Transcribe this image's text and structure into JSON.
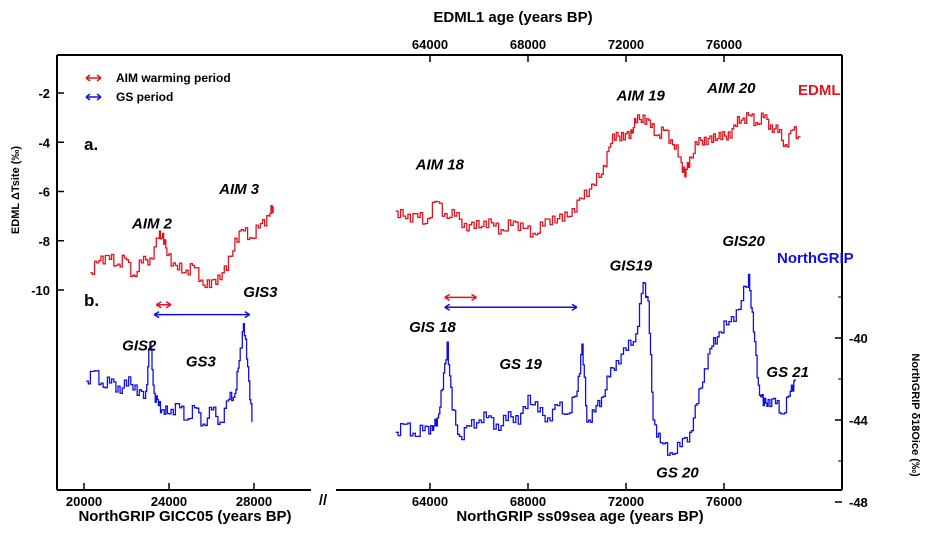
{
  "chart_data": {
    "type": "line",
    "top_axis": {
      "label": "EDML1 age (years BP)",
      "ticks": [
        64000,
        68000,
        72000,
        76000
      ]
    },
    "bottom_axis": {
      "left_label": "NorthGRIP GICC05 (years BP)",
      "right_label": "NorthGRIP ss09sea age (years BP)",
      "left_ticks": [
        20000,
        24000,
        28000
      ],
      "right_ticks": [
        64000,
        68000,
        72000,
        76000
      ],
      "break_symbol": "//"
    },
    "left_axis": {
      "label": "EDML ΔTsite (‰)",
      "ticks": [
        -2,
        -4,
        -6,
        -8,
        -10
      ],
      "range": [
        -11.3,
        -0.8
      ]
    },
    "right_axis": {
      "label": "NorthGRIP δ18Oice (‰)",
      "ticks": [
        -40,
        -44,
        -48
      ],
      "range": [
        -48,
        -34.7
      ]
    },
    "legend": {
      "placement": "top-left",
      "items": [
        {
          "label": "AIM warming period",
          "color": "#e0141e"
        },
        {
          "label": "GS period",
          "color": "#1010e0"
        }
      ]
    },
    "panel_labels": [
      "a.",
      "b."
    ],
    "series": [
      {
        "name": "EDML",
        "color": "#e0141e",
        "segments": [
          {
            "x": [
              20300,
              20700,
              21100,
              21500,
              21900,
              22300,
              22700,
              23100,
              23500,
              23700,
              23900,
              24300,
              24700,
              25100,
              25500,
              25900,
              26300,
              26700,
              27100,
              27500,
              27900,
              28300,
              28700,
              28900
            ],
            "y": [
              -9.3,
              -8.8,
              -8.6,
              -9.0,
              -8.7,
              -9.4,
              -8.9,
              -8.7,
              -7.9,
              -7.7,
              -8.6,
              -9.0,
              -9.3,
              -9.0,
              -9.6,
              -9.9,
              -9.4,
              -9.2,
              -7.9,
              -7.6,
              -7.9,
              -7.3,
              -7.0,
              -6.6
            ]
          },
          {
            "x": [
              62600,
              63000,
              63400,
              63800,
              64200,
              64600,
              65000,
              65400,
              65800,
              66200,
              66600,
              67000,
              67400,
              67800,
              68200,
              68600,
              69000,
              69400,
              69800,
              70200,
              70600,
              71000,
              71300,
              71600,
              71900,
              72200,
              72400,
              72700,
              73000,
              73300,
              73600,
              73900,
              74200,
              74400,
              74600,
              74900,
              75200,
              75500,
              75800,
              76100,
              76400,
              76700,
              77000,
              77300,
              77600,
              77900,
              78200,
              78500,
              78800,
              79100
            ],
            "y": [
              -6.8,
              -7.1,
              -6.9,
              -7.3,
              -6.4,
              -6.9,
              -7.0,
              -7.3,
              -7.5,
              -7.2,
              -7.4,
              -7.6,
              -7.2,
              -7.5,
              -7.7,
              -7.4,
              -7.0,
              -7.2,
              -6.7,
              -6.3,
              -5.7,
              -5.3,
              -4.2,
              -3.6,
              -3.9,
              -3.5,
              -3.2,
              -2.9,
              -3.4,
              -3.7,
              -3.5,
              -4.1,
              -4.6,
              -5.4,
              -4.6,
              -4.1,
              -3.8,
              -4.0,
              -3.6,
              -3.9,
              -3.3,
              -3.1,
              -2.9,
              -3.2,
              -3.0,
              -3.3,
              -3.6,
              -4.1,
              -3.5,
              -3.8
            ]
          }
        ]
      },
      {
        "name": "NorthGRIP",
        "color": "#1010e0",
        "segments": [
          {
            "x": [
              20100,
              20500,
              20900,
              21300,
              21700,
              22100,
              22500,
              22900,
              23100,
              23300,
              23500,
              23700,
              24000,
              24400,
              24800,
              25200,
              25600,
              26000,
              26400,
              26800,
              27100,
              27300,
              27500,
              27700,
              27900
            ],
            "y": [
              -42.1,
              -41.6,
              -42.4,
              -42.0,
              -42.7,
              -41.9,
              -42.8,
              -42.6,
              -40.2,
              -42.7,
              -43.3,
              -43.5,
              -43.7,
              -43.2,
              -44.0,
              -43.4,
              -44.2,
              -43.5,
              -44.1,
              -43.0,
              -42.7,
              -41.1,
              -39.3,
              -41.4,
              -44.1
            ]
          },
          {
            "x": [
              62600,
              63000,
              63400,
              63800,
              64100,
              64300,
              64500,
              64700,
              64900,
              65200,
              65600,
              66000,
              66400,
              66800,
              67200,
              67600,
              68000,
              68400,
              68800,
              69200,
              69600,
              70000,
              70200,
              70400,
              70700,
              71000,
              71300,
              71600,
              72000,
              72400,
              72700,
              72900,
              73100,
              73400,
              73800,
              74200,
              74600,
              74900,
              75200,
              75500,
              75800,
              76200,
              76600,
              77000,
              77200,
              77400,
              77600,
              77800,
              78100,
              78400,
              78700,
              78900
            ],
            "y": [
              -44.6,
              -44.2,
              -44.8,
              -44.3,
              -44.5,
              -43.9,
              -42.5,
              -40.2,
              -43.5,
              -44.8,
              -44.3,
              -44.0,
              -43.8,
              -44.5,
              -43.6,
              -44.2,
              -42.8,
              -43.6,
              -43.9,
              -43.3,
              -43.7,
              -42.6,
              -40.3,
              -44.1,
              -43.6,
              -42.9,
              -41.9,
              -41.1,
              -40.6,
              -39.8,
              -37.3,
              -38.2,
              -44.0,
              -45.1,
              -45.6,
              -45.3,
              -44.6,
              -43.2,
              -41.5,
              -40.4,
              -39.7,
              -39.2,
              -38.6,
              -36.9,
              -39.7,
              -42.3,
              -43.3,
              -43.0,
              -43.2,
              -43.7,
              -42.6,
              -42.0
            ]
          }
        ]
      }
    ],
    "record_labels": {
      "edml": "EDML",
      "ngrip": "NorthGRIP"
    },
    "annotations": {
      "aim": [
        {
          "text": "AIM 2",
          "x": 23200,
          "y": -7.5
        },
        {
          "text": "AIM 3",
          "x": 27300,
          "y": -6.1
        },
        {
          "text": "AIM 18",
          "x": 64400,
          "y": -5.1
        },
        {
          "text": "AIM 19",
          "x": 72600,
          "y": -2.3
        },
        {
          "text": "AIM 20",
          "x": 76300,
          "y": -2.0
        }
      ],
      "gis": [
        {
          "text": "GIS2",
          "x": 22600,
          "y": -40.6
        },
        {
          "text": "GS3",
          "x": 25500,
          "y": -41.4
        },
        {
          "text": "GIS3",
          "x": 28300,
          "y": -38.0
        },
        {
          "text": "GIS 18",
          "x": 64100,
          "y": -39.7
        },
        {
          "text": "GS 19",
          "x": 67700,
          "y": -41.5
        },
        {
          "text": "GIS19",
          "x": 72200,
          "y": -36.7
        },
        {
          "text": "GS 20",
          "x": 74100,
          "y": -46.8
        },
        {
          "text": "GIS20",
          "x": 76800,
          "y": -35.5
        },
        {
          "text": "GS 21",
          "x": 78600,
          "y": -41.9
        }
      ]
    },
    "period_bars": [
      {
        "kind": "aim",
        "color": "#e0141e",
        "x0": 23400,
        "x1": 24100,
        "y": -10.6
      },
      {
        "kind": "gs",
        "color": "#1010e0",
        "x0": 23300,
        "x1": 27800,
        "y": -11.0
      },
      {
        "kind": "aim",
        "color": "#e0141e",
        "x0": 64600,
        "x1": 65900,
        "y": -10.3
      },
      {
        "kind": "gs",
        "color": "#1010e0",
        "x0": 64600,
        "x1": 70000,
        "y": -10.7
      }
    ]
  }
}
